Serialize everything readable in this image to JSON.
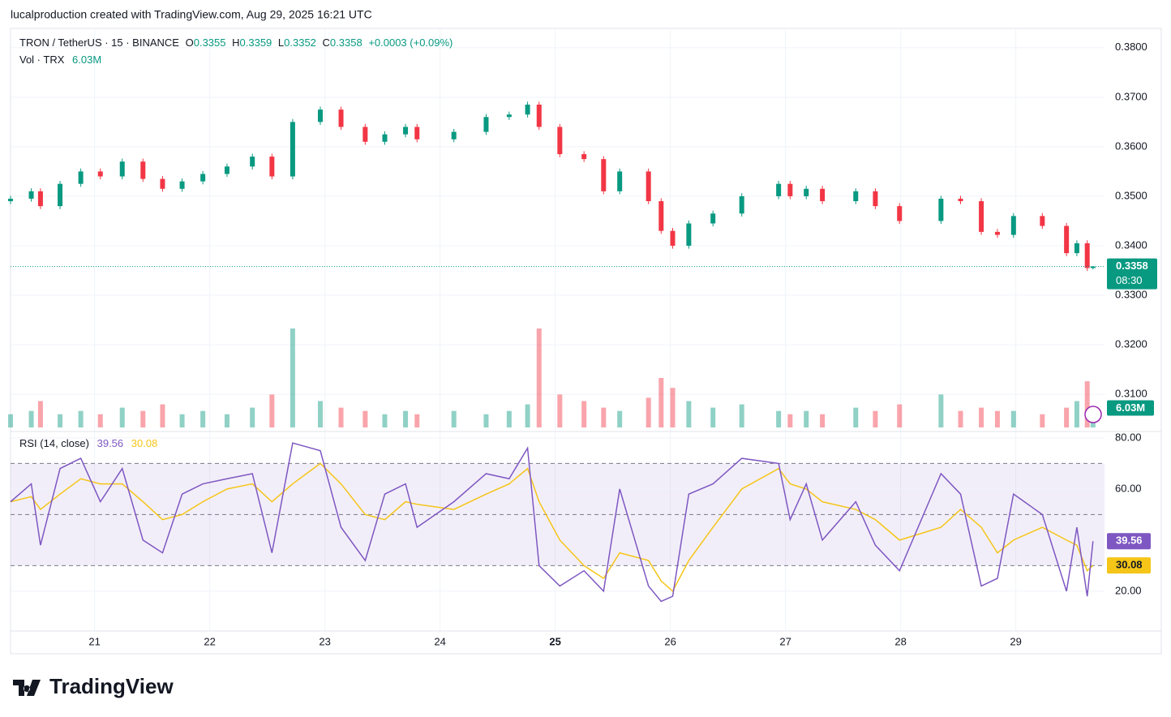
{
  "header": {
    "caption": "lucalproduction created with TradingView.com, Aug 29, 2025 16:21 UTC"
  },
  "footer": {
    "brand": "TradingView"
  },
  "chart_data": {
    "type": "candlestick",
    "symbol": "TRON / TetherUS · 15 · BINANCE",
    "labels": {
      "o": "O",
      "h": "H",
      "l": "L",
      "c": "C"
    },
    "change": "+0.0003 (+0.09%)",
    "countdown": "08:30",
    "up_color": "#089981",
    "down_color": "#f23645",
    "grid": true,
    "xlim": [
      20.27,
      29.77
    ],
    "xticks": [
      21,
      22,
      23,
      24,
      25,
      26,
      27,
      28,
      29
    ],
    "bold_xtick": 25,
    "ylim": [
      0.3033,
      0.3839
    ],
    "yticks": [
      {
        "value": 0.31,
        "label": "0.3100"
      },
      {
        "value": 0.32,
        "label": "0.3200"
      },
      {
        "value": 0.33,
        "label": "0.3300"
      },
      {
        "value": 0.34,
        "label": "0.3400"
      },
      {
        "value": 0.35,
        "label": "0.3500"
      },
      {
        "value": 0.36,
        "label": "0.3600"
      },
      {
        "value": 0.37,
        "label": "0.3700"
      },
      {
        "value": 0.38,
        "label": "0.3800"
      }
    ],
    "x": [
      20.27,
      20.45,
      20.53,
      20.7,
      20.88,
      21.05,
      21.24,
      21.42,
      21.59,
      21.76,
      21.94,
      22.15,
      22.37,
      22.54,
      22.72,
      22.96,
      23.14,
      23.35,
      23.52,
      23.7,
      23.8,
      24.12,
      24.4,
      24.6,
      24.76,
      24.86,
      25.04,
      25.25,
      25.42,
      25.56,
      25.81,
      25.92,
      26.02,
      26.16,
      26.37,
      26.62,
      26.94,
      27.04,
      27.18,
      27.32,
      27.61,
      27.78,
      27.99,
      28.35,
      28.52,
      28.7,
      28.84,
      28.98,
      29.23,
      29.44,
      29.53,
      29.62,
      29.67
    ],
    "open": [
      0.349,
      0.3495,
      0.351,
      0.348,
      0.3525,
      0.355,
      0.354,
      0.357,
      0.3535,
      0.3515,
      0.353,
      0.3545,
      0.356,
      0.358,
      0.354,
      0.365,
      0.3675,
      0.364,
      0.361,
      0.3625,
      0.364,
      0.3615,
      0.363,
      0.366,
      0.3665,
      0.3685,
      0.364,
      0.3585,
      0.3575,
      0.351,
      0.355,
      0.349,
      0.343,
      0.34,
      0.3445,
      0.3465,
      0.35,
      0.3525,
      0.35,
      0.3515,
      0.349,
      0.351,
      0.348,
      0.345,
      0.3495,
      0.349,
      0.3428,
      0.3422,
      0.346,
      0.344,
      0.3385,
      0.3405,
      0.3355
    ],
    "high": [
      0.3501,
      0.3516,
      0.3516,
      0.3531,
      0.3556,
      0.3556,
      0.3576,
      0.3576,
      0.3541,
      0.3536,
      0.3551,
      0.3566,
      0.3586,
      0.3586,
      0.3656,
      0.3681,
      0.3681,
      0.3646,
      0.3631,
      0.3646,
      0.3646,
      0.3636,
      0.3666,
      0.3671,
      0.3691,
      0.3691,
      0.3646,
      0.3591,
      0.3581,
      0.3556,
      0.3556,
      0.3496,
      0.3436,
      0.3451,
      0.3471,
      0.3506,
      0.3531,
      0.3531,
      0.3521,
      0.3521,
      0.3516,
      0.3516,
      0.3486,
      0.3501,
      0.3501,
      0.3496,
      0.3434,
      0.3466,
      0.3466,
      0.3446,
      0.3411,
      0.3411,
      0.3359
    ],
    "low": [
      0.3484,
      0.3489,
      0.3474,
      0.3474,
      0.3519,
      0.3534,
      0.3534,
      0.3529,
      0.3509,
      0.3509,
      0.3524,
      0.3539,
      0.3554,
      0.3534,
      0.3534,
      0.3644,
      0.3634,
      0.3604,
      0.3604,
      0.3619,
      0.3609,
      0.3609,
      0.3624,
      0.3654,
      0.3659,
      0.3634,
      0.3579,
      0.3569,
      0.3504,
      0.3504,
      0.3484,
      0.3424,
      0.3394,
      0.3394,
      0.3439,
      0.3459,
      0.3494,
      0.3494,
      0.3494,
      0.3484,
      0.3484,
      0.3474,
      0.3444,
      0.3444,
      0.3484,
      0.3422,
      0.3416,
      0.3416,
      0.3434,
      0.3379,
      0.3379,
      0.3349,
      0.3352
    ],
    "close": [
      0.3495,
      0.351,
      0.348,
      0.3525,
      0.355,
      0.354,
      0.357,
      0.3535,
      0.3515,
      0.353,
      0.3545,
      0.356,
      0.358,
      0.354,
      0.365,
      0.3675,
      0.364,
      0.361,
      0.3625,
      0.364,
      0.3615,
      0.363,
      0.366,
      0.3665,
      0.3685,
      0.364,
      0.3585,
      0.3575,
      0.351,
      0.355,
      0.349,
      0.343,
      0.34,
      0.3445,
      0.3465,
      0.35,
      0.3525,
      0.35,
      0.3515,
      0.349,
      0.351,
      0.348,
      0.345,
      0.3495,
      0.349,
      0.3428,
      0.3422,
      0.346,
      0.344,
      0.3385,
      0.3405,
      0.3355,
      0.3358
    ],
    "volume": {
      "name": "Vol · TRX",
      "ylim": [
        0,
        30
      ],
      "last_label": "6.03M",
      "values": [
        4,
        5,
        8,
        4,
        5,
        4,
        6,
        5,
        7,
        4,
        5,
        4,
        6,
        10,
        30,
        8,
        6,
        5,
        4,
        5,
        4,
        5,
        4,
        5,
        7,
        30,
        10,
        8,
        6,
        5,
        9,
        15,
        12,
        8,
        6,
        7,
        5,
        4,
        5,
        4,
        6,
        5,
        7,
        10,
        5,
        6,
        5,
        5,
        4,
        6,
        8,
        14,
        6.03
      ]
    },
    "rsi": {
      "name": "RSI (14, close)",
      "color": "#7e57c2",
      "ma_color": "#f5c518",
      "ylim": [
        4.4,
        82.5
      ],
      "yticks": [
        {
          "value": 20,
          "label": "20.00"
        },
        {
          "value": 60,
          "label": "60.00"
        },
        {
          "value": 80,
          "label": "80.00"
        }
      ],
      "bands": [
        30,
        50,
        70
      ],
      "values": [
        55,
        62,
        38,
        68,
        72,
        55,
        68,
        40,
        35,
        58,
        62,
        64,
        66,
        35,
        78,
        75,
        45,
        32,
        58,
        62,
        45,
        55,
        66,
        64,
        76,
        30,
        22,
        28,
        20,
        60,
        22,
        16,
        18,
        58,
        62,
        72,
        70,
        48,
        62,
        40,
        55,
        38,
        28,
        66,
        58,
        22,
        25,
        58,
        50,
        20,
        45,
        18,
        39.56
      ],
      "ma": [
        55,
        57,
        52,
        58,
        64,
        62,
        62,
        55,
        48,
        50,
        55,
        60,
        62,
        55,
        62,
        70,
        62,
        50,
        48,
        55,
        54,
        52,
        58,
        62,
        68,
        55,
        40,
        30,
        25,
        35,
        32,
        24,
        20,
        32,
        45,
        60,
        68,
        62,
        60,
        55,
        52,
        48,
        40,
        45,
        52,
        45,
        35,
        40,
        45,
        40,
        38,
        28,
        30.08
      ]
    }
  }
}
